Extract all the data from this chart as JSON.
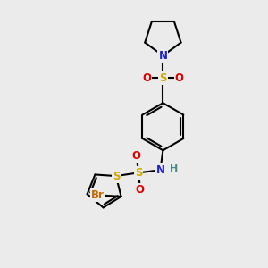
{
  "background_color": "#ebebeb",
  "atom_colors": {
    "C": "#000000",
    "N": "#2222cc",
    "S": "#ccaa00",
    "O": "#dd0000",
    "Br": "#cc6600",
    "H": "#448888"
  },
  "bond_color": "#000000",
  "bond_width": 1.5,
  "figsize": [
    3.0,
    3.0
  ],
  "dpi": 100
}
